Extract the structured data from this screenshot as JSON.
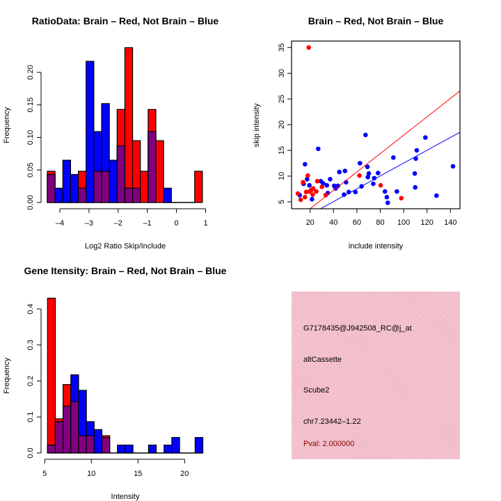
{
  "colors": {
    "red": "#ff0000",
    "blue": "#0000ff",
    "overlap": "#800080",
    "panel": "#f2bcc8",
    "pval": "#8b0000"
  },
  "chart_data": [
    {
      "type": "bar",
      "subtype": "overlaid-histogram",
      "title": "RatioData: Brain – Red, Not Brain – Blue",
      "xlabel": "Log2 Ratio Skip/Include",
      "ylabel": "Frequency",
      "bin_start": -4.43,
      "bin_width": 0.266,
      "xticks": [
        -4,
        -3,
        -2,
        -1,
        0,
        1
      ],
      "yticks": [
        "0.00",
        "0.05",
        "0.10",
        "0.15",
        "0.20"
      ],
      "ylim": [
        0,
        0.24
      ],
      "series": [
        {
          "name": "Brain",
          "color": "red",
          "values": [
            0.048,
            0,
            0,
            0,
            0.048,
            0,
            0.048,
            0.048,
            0,
            0.143,
            0.238,
            0.095,
            0.048,
            0.143,
            0.095,
            0,
            0,
            0,
            0,
            0.048
          ]
        },
        {
          "name": "Not Brain",
          "color": "blue",
          "values": [
            0.043,
            0.022,
            0.065,
            0.043,
            0.022,
            0.217,
            0.109,
            0.152,
            0.065,
            0.087,
            0.022,
            0.022,
            0,
            0.109,
            0,
            0.022,
            0,
            0,
            0,
            0
          ]
        }
      ]
    },
    {
      "type": "scatter",
      "title": "Brain – Red, Not Brain – Blue",
      "xlabel": "include intensity",
      "ylabel": "skip intensity",
      "xlim": [
        4,
        148
      ],
      "ylim": [
        3.65,
        36.3
      ],
      "xticks": [
        20,
        40,
        60,
        80,
        100,
        120,
        140
      ],
      "yticks": [
        5,
        10,
        15,
        20,
        25,
        30,
        35
      ],
      "series": [
        {
          "name": "Not Brain",
          "color": "blue",
          "fit": {
            "slope": 0.1248,
            "intercept": 0.04
          },
          "points": [
            [
              11.1,
              6.3
            ],
            [
              14.4,
              8.5
            ],
            [
              15.6,
              12.3
            ],
            [
              17.4,
              9.4
            ],
            [
              19.4,
              8.2
            ],
            [
              21.6,
              5.5
            ],
            [
              26.9,
              15.3
            ],
            [
              29.1,
              9.0
            ],
            [
              31.1,
              8.6
            ],
            [
              34.3,
              8.2
            ],
            [
              35.1,
              6.7
            ],
            [
              37.1,
              9.4
            ],
            [
              40.6,
              8.1
            ],
            [
              41.8,
              7.6
            ],
            [
              43.8,
              8.1
            ],
            [
              45,
              10.8
            ],
            [
              49,
              6.4
            ],
            [
              49.8,
              11.0
            ],
            [
              50.7,
              8.8
            ],
            [
              53.1,
              6.9
            ],
            [
              58.7,
              6.9
            ],
            [
              62.6,
              12.5
            ],
            [
              64,
              8.0
            ],
            [
              67.4,
              18.0
            ],
            [
              69,
              11.8
            ],
            [
              69.4,
              9.8
            ],
            [
              70.2,
              10.5
            ],
            [
              74,
              8.5
            ],
            [
              74.8,
              9.6
            ],
            [
              78.1,
              10.6
            ],
            [
              84,
              7.0
            ],
            [
              85.6,
              5.9
            ],
            [
              86.4,
              4.8
            ],
            [
              91.2,
              13.6
            ],
            [
              94.2,
              7.0
            ],
            [
              109.5,
              10.5
            ],
            [
              109.9,
              7.8
            ],
            [
              110.4,
              13.4
            ],
            [
              111.2,
              15.0
            ],
            [
              118.6,
              17.5
            ],
            [
              128.1,
              6.2
            ],
            [
              142.2,
              11.9
            ]
          ]
        },
        {
          "name": "Brain",
          "color": "red",
          "fit": {
            "slope": 0.1787,
            "intercept": 0.08
          },
          "points": [
            [
              9.5,
              6.6
            ],
            [
              11.9,
              5.4
            ],
            [
              13.9,
              8.8
            ],
            [
              15.6,
              5.9
            ],
            [
              16.6,
              6.9
            ],
            [
              18,
              10.1
            ],
            [
              18.8,
              35
            ],
            [
              19.6,
              7
            ],
            [
              21,
              7.3
            ],
            [
              22.2,
              6.4
            ],
            [
              22.6,
              7.6
            ],
            [
              25.2,
              7
            ],
            [
              26.1,
              9
            ],
            [
              30.1,
              7.9
            ],
            [
              33.3,
              6.3
            ],
            [
              62.2,
              10.1
            ],
            [
              80.3,
              8.2
            ],
            [
              98,
              5.7
            ]
          ]
        }
      ]
    },
    {
      "type": "bar",
      "subtype": "overlaid-histogram",
      "title": "Gene Itensity: Brain – Red, Not Brain – Blue",
      "xlabel": "Intensity",
      "ylabel": "Frequency",
      "bin_start": 5.3,
      "bin_width": 0.833,
      "xticks": [
        5,
        10,
        15,
        20
      ],
      "yticks": [
        "0.0",
        "0.1",
        "0.2",
        "0.3",
        "0.4"
      ],
      "ylim": [
        0,
        0.43
      ],
      "series": [
        {
          "name": "Brain",
          "color": "red",
          "values": [
            0.43,
            0.095,
            0.19,
            0.143,
            0.048,
            0.048,
            0,
            0.048,
            0,
            0,
            0,
            0,
            0,
            0,
            0,
            0,
            0,
            0,
            0,
            0
          ]
        },
        {
          "name": "Not Brain",
          "color": "blue",
          "values": [
            0.022,
            0.087,
            0.13,
            0.217,
            0.174,
            0.087,
            0.065,
            0.043,
            0,
            0.022,
            0.022,
            0,
            0,
            0.022,
            0,
            0.022,
            0.043,
            0,
            0,
            0.043
          ]
        }
      ]
    }
  ],
  "info": {
    "probe": "G7178435@J942508_RC@j_at",
    "event": "altCassette",
    "gene": "Scube2",
    "location": "chr7.23442–1.22",
    "pval": "Pval: 2.000000"
  }
}
